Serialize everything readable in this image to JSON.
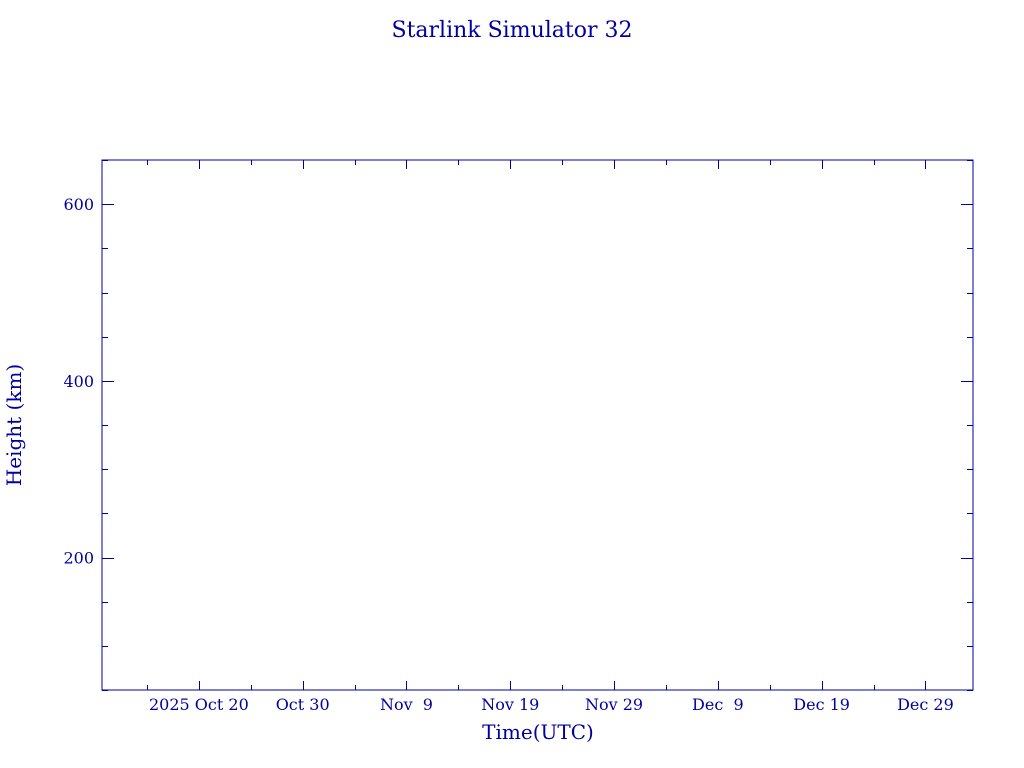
{
  "chart_data": {
    "type": "line",
    "title": "Starlink Simulator 32",
    "xlabel": "Time(UTC)",
    "ylabel": "Height (km)",
    "xlim": [
      "2025-10-10T16:00",
      "2026-01-02T14:00"
    ],
    "ylim": [
      50,
      650
    ],
    "x_ticks": [
      "2025-10-20",
      "2025-10-30",
      "2025-11-09",
      "2025-11-19",
      "2025-11-29",
      "2025-12-09",
      "2025-12-19",
      "2025-12-29"
    ],
    "x_tick_labels": [
      "2025 Oct 20",
      "Oct 30",
      "Nov  9",
      "Nov 19",
      "Nov 29",
      "Dec  9",
      "Dec 19",
      "Dec 29"
    ],
    "x_minor_step_days": 5,
    "y_ticks": [
      200,
      400,
      600
    ],
    "y_tick_labels": [
      "200",
      "400",
      "600"
    ],
    "y_minor_step": 50,
    "grid": false,
    "series": [],
    "color": "#0000a0"
  }
}
